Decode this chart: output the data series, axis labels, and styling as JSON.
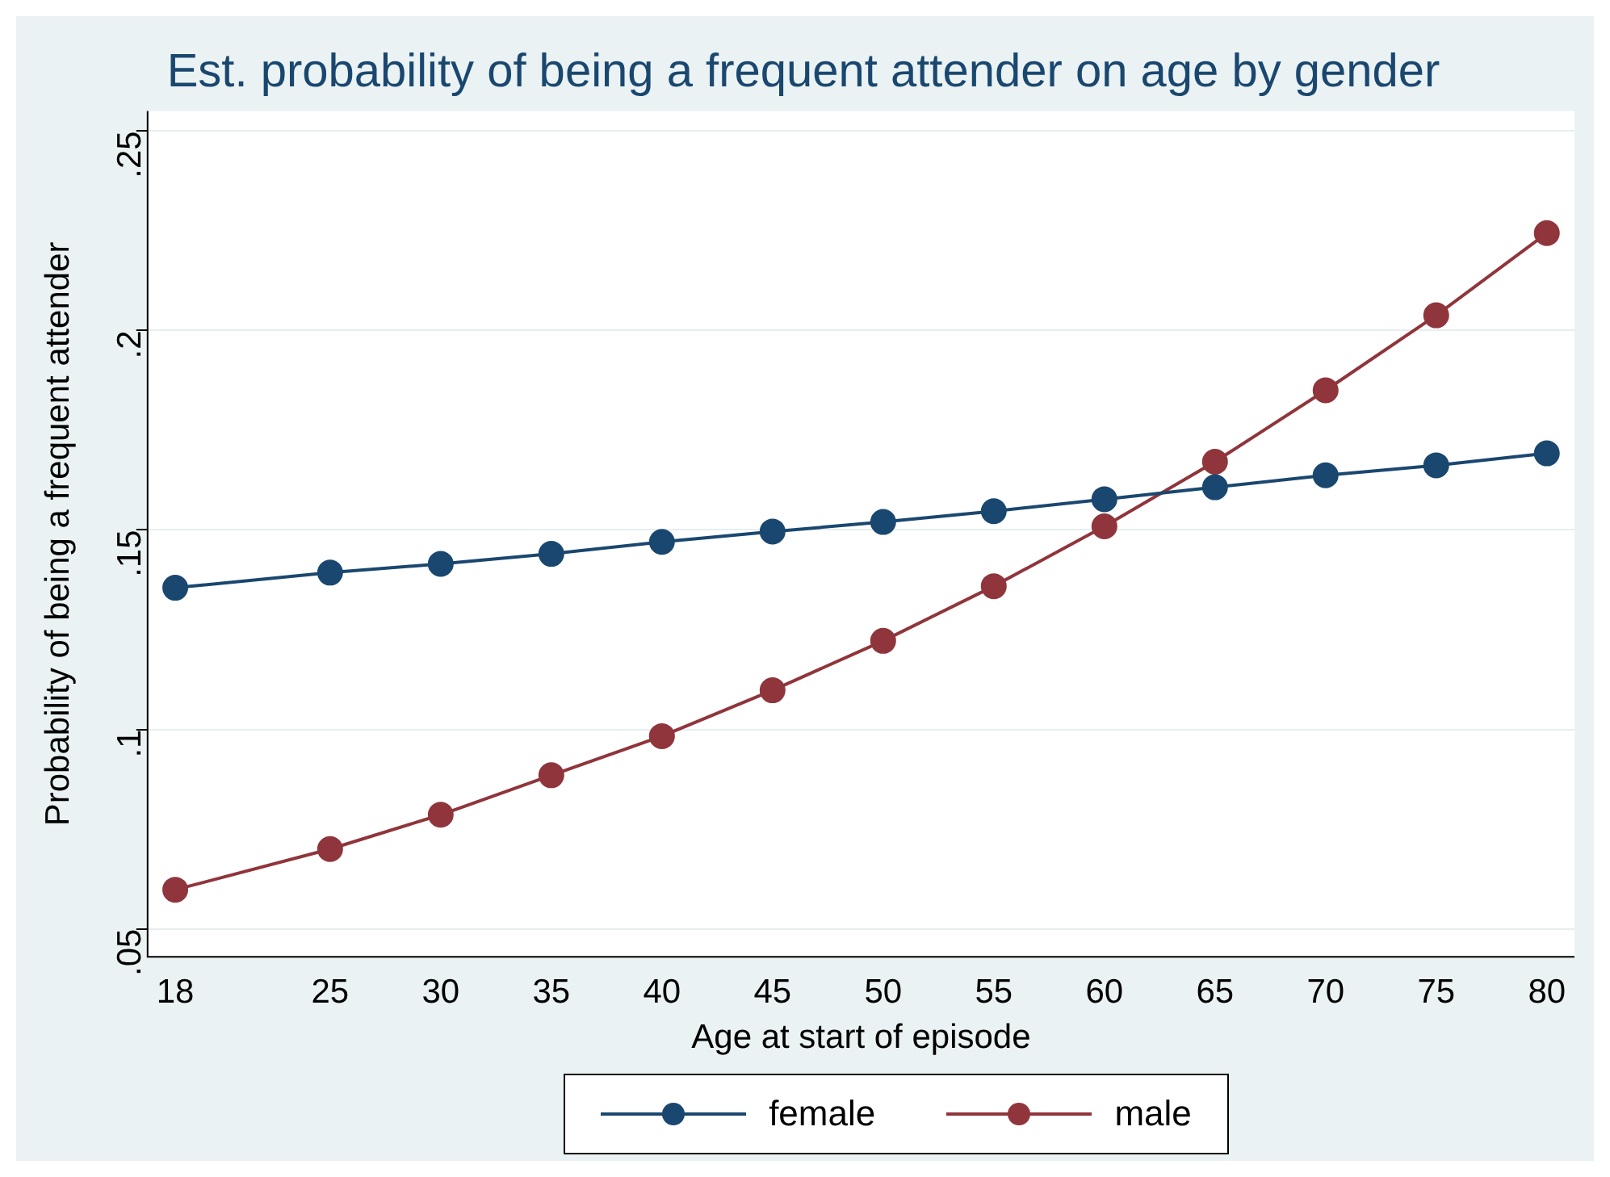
{
  "chart_data": {
    "type": "line",
    "title": "Est. probability of being a frequent attender on age by gender",
    "xlabel": "Age at start of episode",
    "ylabel": "Probability of being a frequent attender",
    "x": [
      18,
      25,
      30,
      35,
      40,
      45,
      50,
      55,
      60,
      65,
      70,
      75,
      80
    ],
    "series": [
      {
        "name": "female",
        "color": "#1a476f",
        "values": [
          0.1355,
          0.1393,
          0.1415,
          0.144,
          0.147,
          0.1496,
          0.152,
          0.1547,
          0.1577,
          0.1607,
          0.1637,
          0.1662,
          0.1692
        ]
      },
      {
        "name": "male",
        "color": "#90353b",
        "values": [
          0.0598,
          0.07,
          0.0786,
          0.0885,
          0.0983,
          0.1098,
          0.1222,
          0.1359,
          0.1509,
          0.1671,
          0.185,
          0.2038,
          0.2244
        ]
      }
    ],
    "xlim": [
      16.75,
      81.25
    ],
    "xticks": [
      18,
      25,
      30,
      35,
      40,
      45,
      50,
      55,
      60,
      65,
      70,
      75,
      80
    ],
    "ylim": [
      0.043,
      0.255
    ],
    "yticks": [
      {
        "value": 0.05,
        "label": ".05"
      },
      {
        "value": 0.1,
        "label": ".1"
      },
      {
        "value": 0.15,
        "label": ".15"
      },
      {
        "value": 0.2,
        "label": ".2"
      },
      {
        "value": 0.25,
        "label": ".25"
      }
    ],
    "grid": "y",
    "legend": "bottom",
    "marker": "circle",
    "line_style": "solid"
  }
}
